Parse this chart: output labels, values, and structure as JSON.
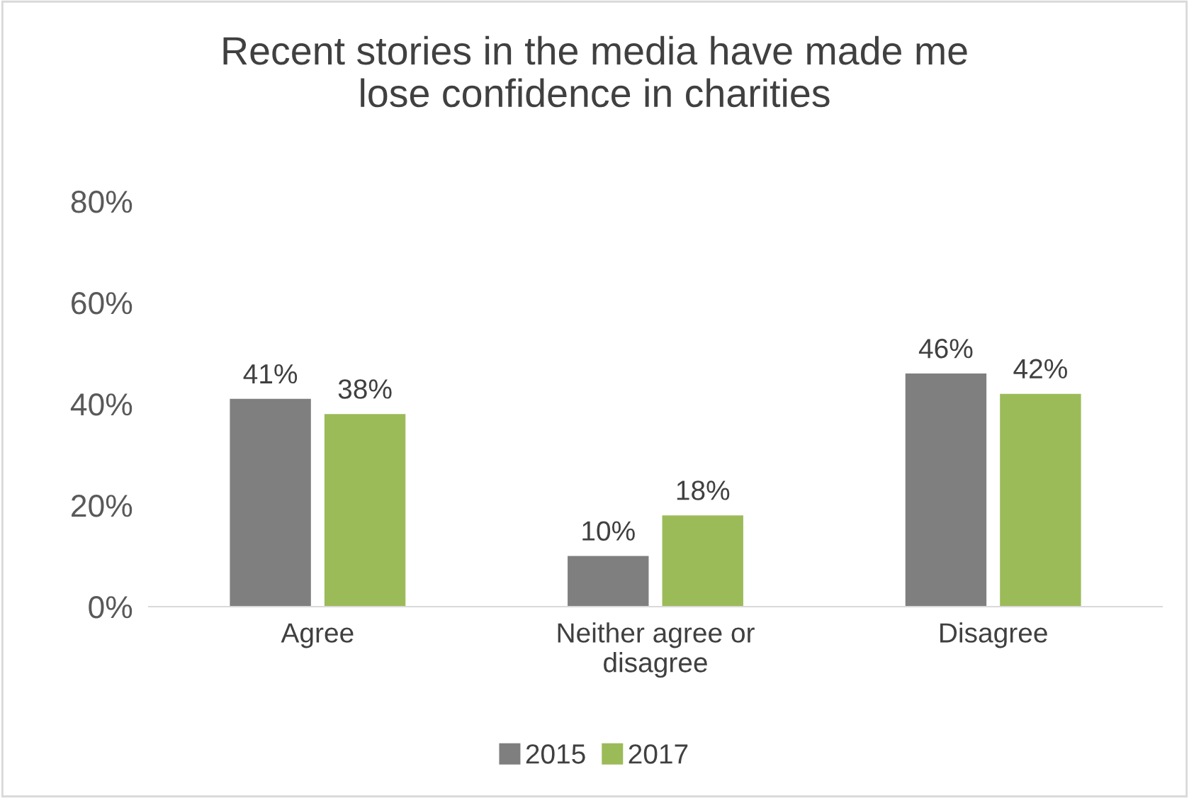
{
  "chart_data": {
    "type": "bar",
    "title": "Recent stories in the media have made me lose confidence in charities",
    "categories": [
      "Agree",
      "Neither agree or disagree",
      "Disagree"
    ],
    "series": [
      {
        "name": "2015",
        "color": "#7f7f7f",
        "values": [
          41,
          10,
          46
        ],
        "value_labels": [
          "41%",
          "10%",
          "46%"
        ]
      },
      {
        "name": "2017",
        "color": "#9bbb59",
        "values": [
          38,
          18,
          42
        ],
        "value_labels": [
          "38%",
          "18%",
          "42%"
        ]
      }
    ],
    "ylim": [
      0,
      80
    ],
    "yticks": [
      {
        "value": 0,
        "label": "0%"
      },
      {
        "value": 20,
        "label": "20%"
      },
      {
        "value": 40,
        "label": "40%"
      },
      {
        "value": 60,
        "label": "60%"
      },
      {
        "value": 80,
        "label": "80%"
      }
    ],
    "grid": false,
    "legend": "bottom"
  }
}
